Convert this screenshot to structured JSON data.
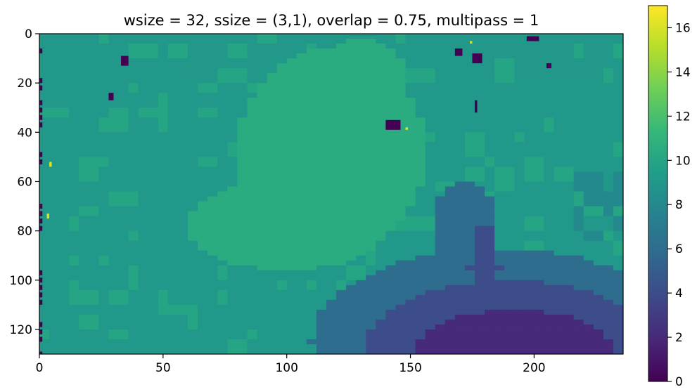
{
  "chart_data": {
    "type": "heatmap",
    "title": "wsize = 32, ssize = (3,1), overlap = 0.75, multipass = 1",
    "xlabel": "",
    "ylabel": "",
    "colormap": "viridis",
    "grid": false,
    "rows": 130,
    "cols": 236,
    "xlim": [
      0,
      236
    ],
    "ylim": [
      130,
      0
    ],
    "x_ticks": [
      0,
      50,
      100,
      150,
      200
    ],
    "y_ticks": [
      0,
      20,
      40,
      60,
      80,
      100,
      120
    ],
    "colorbar": {
      "ticks": [
        0,
        2,
        4,
        6,
        8,
        10,
        12,
        14,
        16
      ],
      "vmin": 0,
      "vmax": 17,
      "placement": "right"
    },
    "value_regions": [
      {
        "region": "background",
        "value": 9
      },
      {
        "region": "central plume (x 80-160, y 5-100)",
        "value": 10.5
      },
      {
        "region": "scattered patches upper and left",
        "value": 10
      },
      {
        "region": "right mid patch (x 200-236, y 55-85)",
        "value": 8
      },
      {
        "region": "lower-right blob (x 110-236, y 70-130)",
        "value": 6
      },
      {
        "region": "inner lower-right (x 130-236, y 95-130)",
        "value": 4
      },
      {
        "region": "core lower-right (x 150-230, y 110-130)",
        "value": 2
      },
      {
        "region": "dark specks",
        "value": 0
      },
      {
        "region": "bright specks",
        "value": 16
      }
    ]
  }
}
